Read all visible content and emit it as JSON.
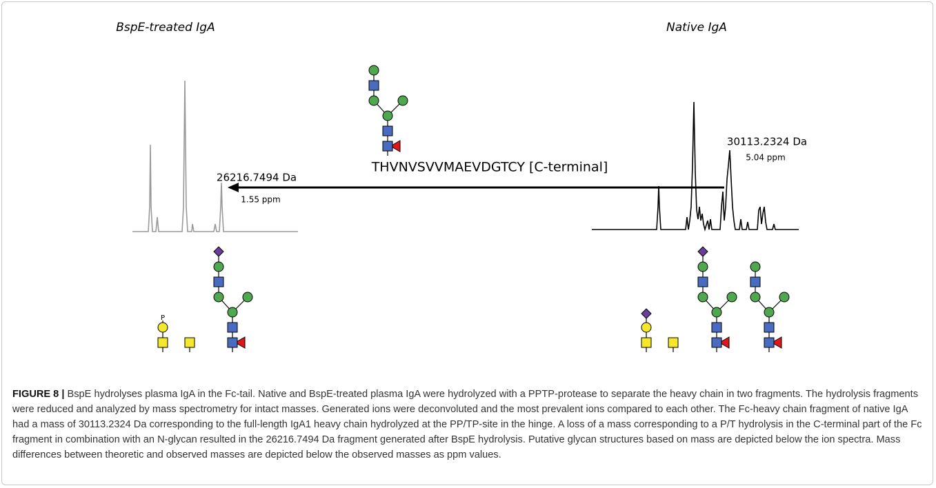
{
  "panel": {
    "left_title": "BspE-treated IgA",
    "right_title": "Native IgA",
    "peptide": "THVNVSVVMAEVDGTCY [C-terminal]",
    "left_mass": "26216.7494 Da",
    "left_ppm": "1.55 ppm",
    "right_mass": "30113.2324 Da",
    "right_ppm": "5.04 ppm",
    "phosphate_label": "P"
  },
  "caption": {
    "label": "FIGURE 8 |",
    "text": "BspE hydrolyses plasma IgA in the Fc-tail. Native and BspE-treated plasma IgA were hydrolyzed with a PPTP-protease to separate the heavy chain in two fragments. The hydrolysis fragments were reduced and analyzed by mass spectrometry for intact masses. Generated ions were deconvoluted and the most prevalent ions compared to each other. The Fc-heavy chain fragment of native IgA had a mass of 30113.2324 Da corresponding to the full-length IgA1 heavy chain hydrolyzed at the PP/TP-site in the hinge. A loss of a mass corresponding to a P/T hydrolysis in the C-terminal part of the Fc fragment in combination with an N-glycan resulted in the 26216.7494 Da fragment generated after BspE hydrolysis. Putative glycan structures based on mass are depicted below the ion spectra. Mass differences between theoretic and observed masses are depicted below the observed masses as ppm values."
  }
}
